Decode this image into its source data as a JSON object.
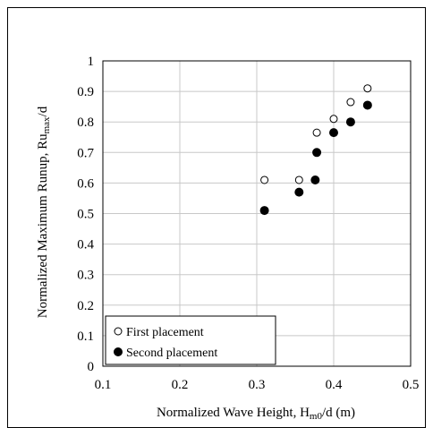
{
  "chart_data": {
    "type": "scatter",
    "xlabel_main": "Normalized Wave Height, H",
    "xlabel_sub": "m0",
    "xlabel_tail": "/d (m)",
    "ylabel_main": "Normalized Maximum Runup,  Ru",
    "ylabel_sub": "max",
    "ylabel_tail": "/d",
    "xlim": [
      0.1,
      0.5
    ],
    "ylim": [
      0,
      1
    ],
    "xticks": [
      "0.1",
      "0.2",
      "0.3",
      "0.4",
      "0.5"
    ],
    "yticks": [
      "0",
      "0.1",
      "0.2",
      "0.3",
      "0.4",
      "0.5",
      "0.6",
      "0.7",
      "0.8",
      "0.9",
      "1"
    ],
    "grid": "major, both axes",
    "legend_position": "bottom-left",
    "series": [
      {
        "name": "First placement",
        "marker": "open-circle",
        "color": "#000000",
        "points": [
          {
            "x": 0.31,
            "y": 0.61
          },
          {
            "x": 0.355,
            "y": 0.61
          },
          {
            "x": 0.378,
            "y": 0.765
          },
          {
            "x": 0.4,
            "y": 0.81
          },
          {
            "x": 0.422,
            "y": 0.865
          },
          {
            "x": 0.444,
            "y": 0.91
          }
        ]
      },
      {
        "name": "Second placement",
        "marker": "filled-circle",
        "color": "#000000",
        "points": [
          {
            "x": 0.31,
            "y": 0.51
          },
          {
            "x": 0.355,
            "y": 0.57
          },
          {
            "x": 0.376,
            "y": 0.61
          },
          {
            "x": 0.378,
            "y": 0.7
          },
          {
            "x": 0.4,
            "y": 0.765
          },
          {
            "x": 0.422,
            "y": 0.8
          },
          {
            "x": 0.444,
            "y": 0.855
          }
        ]
      }
    ]
  }
}
